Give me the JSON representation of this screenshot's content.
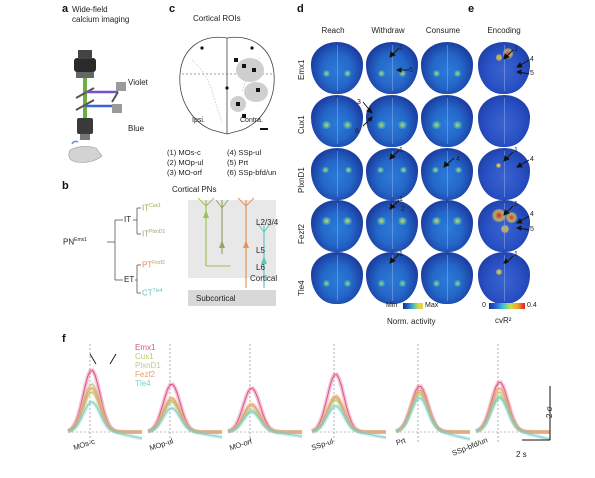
{
  "panel_letters": {
    "a": "a",
    "b": "b",
    "c": "c",
    "d": "d",
    "e": "e",
    "f": "f"
  },
  "panel_a": {
    "title": "Wide-field\ncalcium imaging",
    "violet": "Violet",
    "blue": "Blue"
  },
  "panel_b": {
    "root": "PN",
    "root_sup": "Emx1",
    "it": "IT",
    "et": "ET",
    "leaves": [
      {
        "base": "IT",
        "sup": "Cux1",
        "color": "#8cae45"
      },
      {
        "base": "IT",
        "sup": "PlxnD1",
        "color": "#9aa36a"
      },
      {
        "base": "PT",
        "sup": "Fezf2",
        "color": "#e08a52"
      },
      {
        "base": "CT",
        "sup": "Tle4",
        "color": "#5ec7c3"
      }
    ],
    "cortical_pns": "Cortical PNs",
    "layers": [
      "L2/3/4",
      "L5",
      "L6"
    ],
    "cortical": "Cortical",
    "subcortical": "Subcortical"
  },
  "panel_c": {
    "title": "Cortical ROIs",
    "ipsi": "Ipsi.",
    "contra": "Contra.",
    "rois": [
      "(1) MOs-c",
      "(2) MOp-ul",
      "(3) MO-orf",
      "(4) SSp-ul",
      "(5) Prt",
      "(6) SSp-bfd/un"
    ]
  },
  "panel_d": {
    "columns": [
      "Reach",
      "Withdraw",
      "Consume"
    ],
    "rows": [
      "Emx1",
      "Cux1",
      "PlxnD1",
      "Fezf2",
      "Tle4"
    ],
    "cbar_min": "Min",
    "cbar_max": "Max",
    "cbar_label": "Norm. activity",
    "annotations": [
      "1",
      "5",
      "3",
      "6",
      "1",
      "4",
      "1",
      "2",
      "1"
    ]
  },
  "panel_e": {
    "title": "Encoding",
    "cbar_min": "0",
    "cbar_max": "0.4",
    "cbar_label": "cvR²",
    "annotations": [
      "1",
      "4",
      "5",
      "1",
      "4",
      "1",
      "4",
      "5",
      "1"
    ]
  },
  "panel_f": {
    "legend": [
      {
        "label": "Emx1",
        "color": "#e0528a"
      },
      {
        "label": "Cux1",
        "color": "#b9cf6a"
      },
      {
        "label": "PlxnD1",
        "color": "#c6c39a"
      },
      {
        "label": "Fezf2",
        "color": "#e8a06c"
      },
      {
        "label": "Tle4",
        "color": "#7ccfc9"
      }
    ],
    "rois": [
      "MOs-c",
      "MOp-ul",
      "MO-orf",
      "SSp-ul",
      "Prt",
      "SSp-bfd/un"
    ],
    "scale_y": "2 σ",
    "scale_x": "2 s"
  }
}
